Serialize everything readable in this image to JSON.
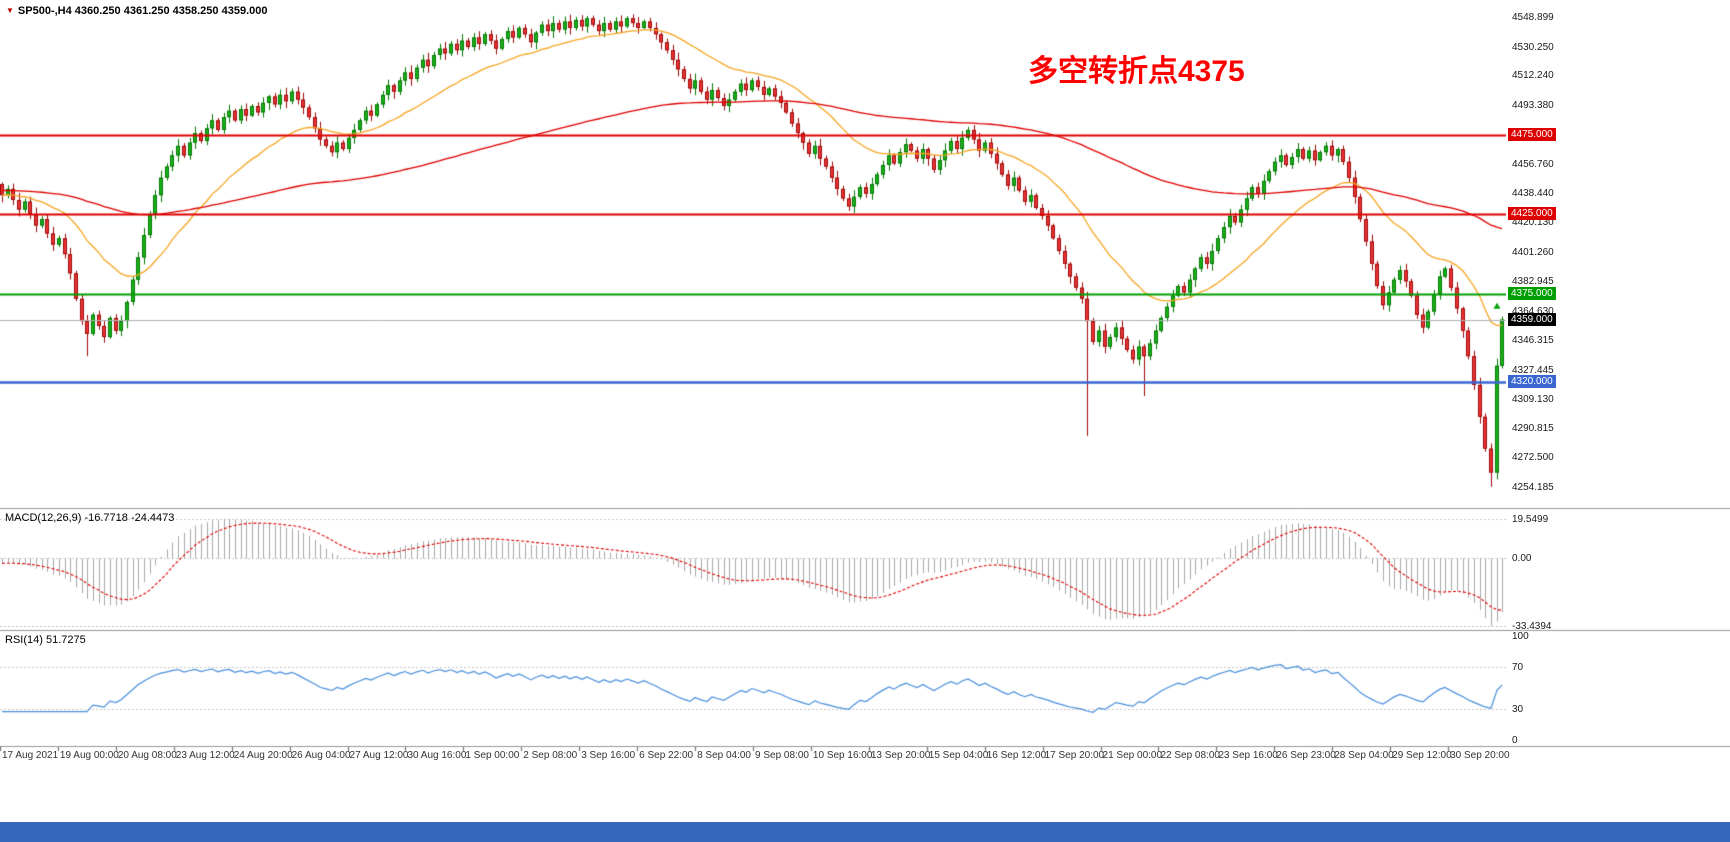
{
  "window": {
    "symbol_header": "SP500-,H4  4360.250 4361.250 4358.250 4359.000",
    "macd_header": "MACD(12,26,9) -16.7718 -24.4473",
    "rsi_header": "RSI(14) 51.7275",
    "annotation_text": "多空转折点4375"
  },
  "colors": {
    "up": "#19b219",
    "up_border": "#067806",
    "down": "#e93434",
    "down_border": "#9e0b0b",
    "ma_fast": "#f5a623",
    "ma_slow": "#e00000",
    "macd_hist": "#a8a8a8",
    "macd_signal": "#e00000",
    "rsi_line": "#4a8fdc",
    "annotation": "#ff0000",
    "taskbar": "#3567bd",
    "level_red": "#dd0000",
    "level_green": "#009e00",
    "level_blue": "#3a66d0",
    "price_line": "#b0b0b0",
    "grid_dotted": "#c8c8c8",
    "separator": "#999999",
    "axis_text": "#1a1a1a"
  },
  "price_axis": {
    "labels": [
      "4548.899",
      "4530.250",
      "4512.240",
      "4493.380",
      "4456.760",
      "4438.440",
      "4420.130",
      "4401.260",
      "4382.945",
      "4364.630",
      "4346.315",
      "4327.445",
      "4309.130",
      "4290.815",
      "4272.500",
      "4254.185"
    ]
  },
  "macd_axis": {
    "labels": [
      {
        "text": "19.5499",
        "value": 19.5499
      },
      {
        "text": "0.00",
        "value": 0
      },
      {
        "text": "-33.4394",
        "value": -33.4394
      }
    ]
  },
  "rsi_axis": {
    "labels": [
      {
        "text": "100",
        "value": 100
      },
      {
        "text": "70",
        "value": 70
      },
      {
        "text": "30",
        "value": 30
      },
      {
        "text": "0",
        "value": 0
      }
    ]
  },
  "time_axis": {
    "labels": [
      "17 Aug 2021",
      "19 Aug 00:00",
      "20 Aug 08:00",
      "23 Aug 12:00",
      "24 Aug 20:00",
      "26 Aug 04:00",
      "27 Aug 12:00",
      "30 Aug 16:00",
      "1 Sep 00:00",
      "2 Sep 08:00",
      "3 Sep 16:00",
      "6 Sep 22:00",
      "8 Sep 04:00",
      "9 Sep 08:00",
      "10 Sep 16:00",
      "13 Sep 20:00",
      "15 Sep 04:00",
      "16 Sep 12:00",
      "17 Sep 20:00",
      "21 Sep 00:00",
      "22 Sep 08:00",
      "23 Sep 16:00",
      "26 Sep 23:00",
      "28 Sep 04:00",
      "29 Sep 12:00",
      "30 Sep 20:00"
    ]
  },
  "chart_data": {
    "type": "candlestick",
    "symbol": "SP500-",
    "timeframe": "H4",
    "ohlc_header": {
      "open": 4360.25,
      "high": 4361.25,
      "low": 4358.25,
      "close": 4359.0
    },
    "y_range_main": [
      4242,
      4557
    ],
    "first_open": 4444,
    "closes": [
      4437,
      4441,
      4434,
      4428,
      4433,
      4425,
      4418,
      4422,
      4413,
      4406,
      4410,
      4400,
      4388,
      4372,
      4358,
      4350,
      4362,
      4355,
      4348,
      4360,
      4352,
      4358,
      4370,
      4384,
      4398,
      4412,
      4425,
      4437,
      4448,
      4455,
      4462,
      4468,
      4462,
      4470,
      4476,
      4471,
      4479,
      4484,
      4478,
      4486,
      4490,
      4484,
      4491,
      4487,
      4493,
      4489,
      4495,
      4499,
      4494,
      4500,
      4496,
      4502,
      4497,
      4492,
      4486,
      4479,
      4472,
      4468,
      4464,
      4470,
      4466,
      4473,
      4478,
      4484,
      4490,
      4487,
      4494,
      4500,
      4506,
      4502,
      4509,
      4514,
      4510,
      4517,
      4522,
      4518,
      4525,
      4529,
      4526,
      4532,
      4528,
      4534,
      4530,
      4536,
      4532,
      4538,
      4534,
      4529,
      4535,
      4540,
      4536,
      4542,
      4538,
      4533,
      4539,
      4544,
      4540,
      4545,
      4541,
      4546,
      4542,
      4547,
      4543,
      4548,
      4544,
      4540,
      4545,
      4541,
      4546,
      4543,
      4548,
      4545,
      4542,
      4546,
      4542,
      4538,
      4533,
      4528,
      4522,
      4516,
      4510,
      4504,
      4509,
      4502,
      4497,
      4503,
      4498,
      4493,
      4497,
      4502,
      4507,
      4503,
      4509,
      4505,
      4500,
      4504,
      4499,
      4495,
      4489,
      4482,
      4476,
      4470,
      4463,
      4468,
      4460,
      4455,
      4448,
      4441,
      4435,
      4430,
      4436,
      4442,
      4438,
      4444,
      4450,
      4456,
      4462,
      4457,
      4464,
      4469,
      4465,
      4460,
      4466,
      4460,
      4453,
      4459,
      4465,
      4471,
      4466,
      4473,
      4478,
      4472,
      4465,
      4470,
      4463,
      4457,
      4450,
      4443,
      4448,
      4440,
      4433,
      4437,
      4429,
      4424,
      4418,
      4410,
      4402,
      4394,
      4386,
      4379,
      4372,
      4358,
      4345,
      4352,
      4342,
      4348,
      4354,
      4347,
      4340,
      4334,
      4342,
      4336,
      4344,
      4352,
      4360,
      4367,
      4374,
      4380,
      4376,
      4384,
      4391,
      4398,
      4394,
      4402,
      4410,
      4417,
      4424,
      4420,
      4428,
      4435,
      4442,
      4438,
      4446,
      4452,
      4458,
      4462,
      4456,
      4461,
      4466,
      4460,
      4465,
      4459,
      4464,
      4468,
      4462,
      4466,
      4458,
      4448,
      4436,
      4422,
      4408,
      4394,
      4380,
      4368,
      4376,
      4384,
      4390,
      4383,
      4374,
      4362,
      4354,
      4364,
      4375,
      4386,
      4391,
      4379,
      4366,
      4352,
      4336,
      4318,
      4298,
      4278,
      4263,
      4330,
      4359
    ],
    "special_lows": {
      "15": 4336,
      "191": 4286,
      "201": 4311,
      "262": 4254
    },
    "special_highs": {
      "103": 4549.5
    },
    "hlines": [
      {
        "price": 4359,
        "tag": "4359.000",
        "line_color": "#b0b0b0",
        "tag_bg": "#000000",
        "width": 1
      },
      {
        "price": 4475,
        "tag": "4475.000",
        "line_color": "#dd0000",
        "tag_bg": "#dd0000",
        "width": 2
      },
      {
        "price": 4425,
        "tag": "4425.000",
        "line_color": "#dd0000",
        "tag_bg": "#dd0000",
        "width": 2
      },
      {
        "price": 4375,
        "tag": "4375.000",
        "line_color": "#009e00",
        "tag_bg": "#009e00",
        "width": 2
      },
      {
        "price": 4320,
        "tag": "4320.000",
        "line_color": "#3a66d0",
        "tag_bg": "#3a66d0",
        "width": 2.4
      }
    ],
    "moving_averages": [
      {
        "type": "ema",
        "period": 24,
        "color": "#f5a623",
        "seed": 4437
      },
      {
        "type": "ema",
        "period": 140,
        "color": "#e00000",
        "seed": 4440
      }
    ],
    "indicators": {
      "macd": {
        "params": [
          12,
          26,
          9
        ],
        "main_value": -16.7718,
        "signal_value": -24.4473,
        "display_range": [
          19.5499,
          -33.4394
        ]
      },
      "rsi": {
        "period": 14,
        "value": 51.7275,
        "levels": [
          30,
          70
        ],
        "display_range": [
          72.5,
          26.5
        ]
      }
    }
  }
}
